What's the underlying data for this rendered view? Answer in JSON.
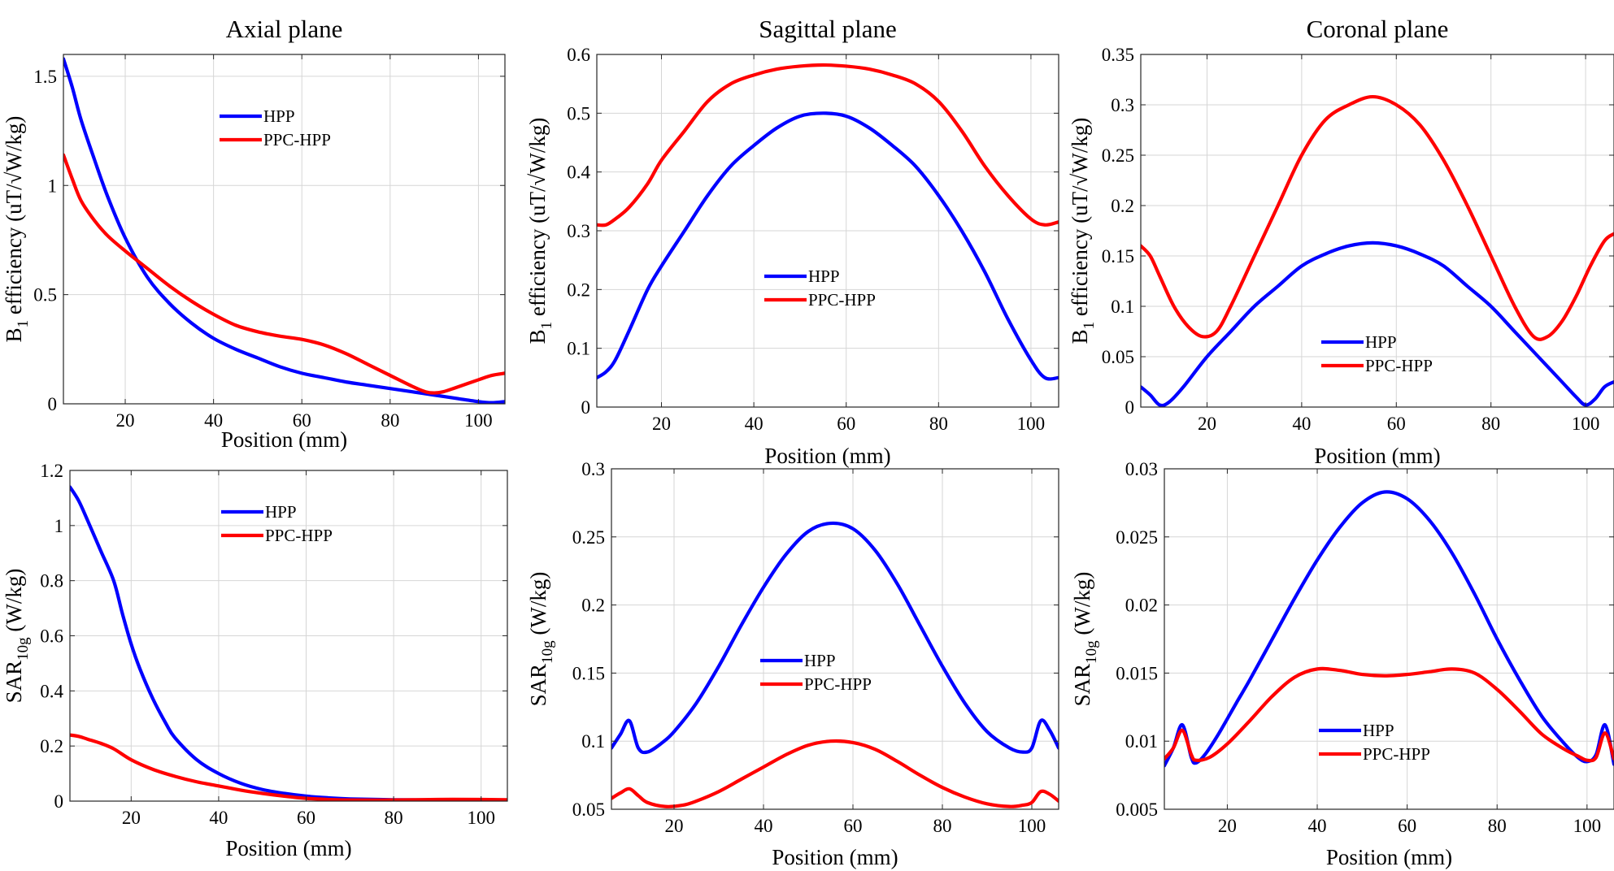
{
  "chart_data": [
    {
      "type": "line",
      "title": "Axial plane",
      "xlabel": "Position (mm)",
      "ylabel": {
        "base": "B",
        "sub": "1",
        "rest": " efficiency (uT/√W/kg)"
      },
      "xlim": [
        6,
        106
      ],
      "ylim": [
        0,
        1.6
      ],
      "xticks": [
        20,
        40,
        60,
        80,
        100
      ],
      "yticks": [
        0,
        0.5,
        1,
        1.5
      ],
      "yticklabels": [
        "0",
        "0.5",
        "1",
        "1.5"
      ],
      "grid": true,
      "legend": "top-center",
      "series": [
        {
          "name": "HPP",
          "color": "#0000ff",
          "x": [
            6,
            8,
            10,
            13,
            16,
            20,
            25,
            30,
            35,
            40,
            45,
            50,
            55,
            60,
            65,
            70,
            75,
            80,
            85,
            90,
            95,
            100,
            103,
            106
          ],
          "y": [
            1.58,
            1.45,
            1.3,
            1.12,
            0.95,
            0.76,
            0.58,
            0.46,
            0.37,
            0.3,
            0.25,
            0.21,
            0.17,
            0.14,
            0.12,
            0.1,
            0.085,
            0.07,
            0.055,
            0.04,
            0.025,
            0.01,
            0.005,
            0.01
          ]
        },
        {
          "name": "PPC-HPP",
          "color": "#ff0000",
          "x": [
            6,
            8,
            10,
            13,
            16,
            20,
            25,
            30,
            35,
            40,
            45,
            50,
            55,
            60,
            65,
            70,
            75,
            80,
            85,
            88,
            90,
            92,
            95,
            100,
            103,
            106
          ],
          "y": [
            1.14,
            1.03,
            0.93,
            0.84,
            0.77,
            0.7,
            0.62,
            0.54,
            0.47,
            0.41,
            0.36,
            0.33,
            0.31,
            0.295,
            0.27,
            0.23,
            0.18,
            0.13,
            0.08,
            0.055,
            0.05,
            0.055,
            0.075,
            0.11,
            0.13,
            0.14
          ]
        }
      ]
    },
    {
      "type": "line",
      "title": "Sagittal plane",
      "xlabel": "Position (mm)",
      "ylabel": {
        "base": "B",
        "sub": "1",
        "rest": " efficiency (uT/√W/kg)"
      },
      "xlim": [
        6,
        106
      ],
      "ylim": [
        0,
        0.6
      ],
      "xticks": [
        20,
        40,
        60,
        80,
        100
      ],
      "yticks": [
        0,
        0.1,
        0.2,
        0.3,
        0.4,
        0.5,
        0.6
      ],
      "yticklabels": [
        "0",
        "0.1",
        "0.2",
        "0.3",
        "0.4",
        "0.5",
        "0.6"
      ],
      "grid": true,
      "legend": "center",
      "series": [
        {
          "name": "HPP",
          "color": "#0000ff",
          "x": [
            6,
            8,
            10,
            13,
            17,
            20,
            25,
            30,
            35,
            40,
            45,
            50,
            55,
            60,
            65,
            70,
            75,
            80,
            85,
            90,
            95,
            100,
            103,
            106
          ],
          "y": [
            0.05,
            0.06,
            0.08,
            0.13,
            0.2,
            0.24,
            0.3,
            0.36,
            0.41,
            0.445,
            0.475,
            0.495,
            0.5,
            0.495,
            0.475,
            0.445,
            0.41,
            0.36,
            0.3,
            0.23,
            0.15,
            0.08,
            0.05,
            0.05
          ]
        },
        {
          "name": "PPC-HPP",
          "color": "#ff0000",
          "x": [
            6,
            8,
            10,
            13,
            17,
            20,
            25,
            30,
            35,
            40,
            45,
            50,
            55,
            60,
            65,
            70,
            75,
            80,
            85,
            90,
            95,
            100,
            103,
            106
          ],
          "y": [
            0.31,
            0.31,
            0.32,
            0.34,
            0.38,
            0.42,
            0.47,
            0.52,
            0.55,
            0.565,
            0.575,
            0.58,
            0.582,
            0.58,
            0.575,
            0.565,
            0.55,
            0.52,
            0.47,
            0.41,
            0.36,
            0.32,
            0.31,
            0.315
          ]
        }
      ]
    },
    {
      "type": "line",
      "title": "Coronal plane",
      "xlabel": "Position (mm)",
      "ylabel": {
        "base": "B",
        "sub": "1",
        "rest": " efficiency (uT/√W/kg)"
      },
      "xlim": [
        6,
        106
      ],
      "ylim": [
        0,
        0.35
      ],
      "xticks": [
        20,
        40,
        60,
        80,
        100
      ],
      "yticks": [
        0,
        0.05,
        0.1,
        0.15,
        0.2,
        0.25,
        0.3,
        0.35
      ],
      "yticklabels": [
        "0",
        "0.05",
        "0.1",
        "0.15",
        "0.2",
        "0.25",
        "0.3",
        "0.35"
      ],
      "grid": true,
      "legend": "bottom-center",
      "series": [
        {
          "name": "HPP",
          "color": "#0000ff",
          "x": [
            6,
            8,
            10,
            12,
            15,
            20,
            25,
            30,
            35,
            40,
            45,
            50,
            55,
            60,
            65,
            70,
            75,
            80,
            85,
            90,
            95,
            98,
            100,
            102,
            104,
            106
          ],
          "y": [
            0.02,
            0.012,
            0.002,
            0.005,
            0.02,
            0.05,
            0.075,
            0.1,
            0.12,
            0.14,
            0.152,
            0.16,
            0.163,
            0.16,
            0.152,
            0.14,
            0.12,
            0.1,
            0.075,
            0.05,
            0.025,
            0.01,
            0.002,
            0.008,
            0.02,
            0.025
          ]
        },
        {
          "name": "PPC-HPP",
          "color": "#ff0000",
          "x": [
            6,
            8,
            10,
            13,
            16,
            19,
            22,
            25,
            30,
            35,
            40,
            45,
            50,
            55,
            60,
            65,
            70,
            75,
            80,
            85,
            89,
            92,
            95,
            98,
            101,
            104,
            106
          ],
          "y": [
            0.16,
            0.15,
            0.13,
            0.1,
            0.08,
            0.07,
            0.075,
            0.1,
            0.15,
            0.2,
            0.25,
            0.285,
            0.3,
            0.308,
            0.3,
            0.28,
            0.245,
            0.2,
            0.15,
            0.1,
            0.07,
            0.07,
            0.085,
            0.11,
            0.14,
            0.165,
            0.172
          ]
        }
      ]
    },
    {
      "type": "line",
      "xlabel": "Position (mm)",
      "ylabel": {
        "base": "SAR",
        "sub": "10g",
        "rest": " (W/kg)"
      },
      "xlim": [
        6,
        106
      ],
      "ylim": [
        0,
        1.2
      ],
      "xticks": [
        20,
        40,
        60,
        80,
        100
      ],
      "yticks": [
        0,
        0.2,
        0.4,
        0.6,
        0.8,
        1,
        1.2
      ],
      "yticklabels": [
        "0",
        "0.2",
        "0.4",
        "0.6",
        "0.8",
        "1",
        "1.2"
      ],
      "grid": true,
      "legend": "top-center",
      "series": [
        {
          "name": "HPP",
          "color": "#0000ff",
          "x": [
            6,
            8,
            10,
            13,
            16,
            18,
            20,
            22,
            25,
            28,
            30,
            35,
            40,
            45,
            50,
            55,
            60,
            65,
            70,
            80,
            90,
            100,
            106
          ],
          "y": [
            1.14,
            1.09,
            1.02,
            0.91,
            0.8,
            0.68,
            0.57,
            0.48,
            0.37,
            0.28,
            0.23,
            0.15,
            0.1,
            0.065,
            0.042,
            0.028,
            0.018,
            0.012,
            0.008,
            0.005,
            0.004,
            0.004,
            0.004
          ]
        },
        {
          "name": "PPC-HPP",
          "color": "#ff0000",
          "x": [
            6,
            8,
            10,
            13,
            16,
            20,
            25,
            30,
            35,
            40,
            45,
            50,
            55,
            60,
            65,
            70,
            80,
            90,
            100,
            106
          ],
          "y": [
            0.24,
            0.235,
            0.225,
            0.21,
            0.19,
            0.15,
            0.115,
            0.09,
            0.07,
            0.055,
            0.04,
            0.028,
            0.018,
            0.01,
            0.006,
            0.004,
            0.004,
            0.006,
            0.006,
            0.005
          ]
        }
      ]
    },
    {
      "type": "line",
      "xlabel": "Position (mm)",
      "ylabel": {
        "base": "SAR",
        "sub": "10g",
        "rest": " (W/kg)"
      },
      "xlim": [
        6,
        106
      ],
      "ylim": [
        0.05,
        0.3
      ],
      "xticks": [
        20,
        40,
        60,
        80,
        100
      ],
      "yticks": [
        0.05,
        0.1,
        0.15,
        0.2,
        0.25,
        0.3
      ],
      "yticklabels": [
        "0.05",
        "0.1",
        "0.15",
        "0.2",
        "0.25",
        "0.3"
      ],
      "grid": true,
      "legend": "center-bottom",
      "series": [
        {
          "name": "HPP",
          "color": "#0000ff",
          "x": [
            6,
            8,
            10,
            12,
            14,
            17,
            20,
            25,
            30,
            35,
            40,
            45,
            50,
            55,
            60,
            65,
            70,
            75,
            80,
            85,
            90,
            95,
            98,
            100,
            102,
            104,
            106
          ],
          "y": [
            0.095,
            0.105,
            0.115,
            0.095,
            0.092,
            0.098,
            0.107,
            0.128,
            0.155,
            0.185,
            0.213,
            0.237,
            0.254,
            0.26,
            0.256,
            0.24,
            0.215,
            0.185,
            0.155,
            0.128,
            0.107,
            0.095,
            0.092,
            0.095,
            0.115,
            0.108,
            0.095
          ]
        },
        {
          "name": "PPC-HPP",
          "color": "#ff0000",
          "x": [
            6,
            8,
            10,
            12,
            14,
            18,
            22,
            25,
            30,
            35,
            40,
            45,
            50,
            55,
            60,
            65,
            70,
            75,
            80,
            85,
            90,
            95,
            98,
            100,
            102,
            104,
            106
          ],
          "y": [
            0.058,
            0.062,
            0.065,
            0.06,
            0.055,
            0.052,
            0.053,
            0.056,
            0.063,
            0.072,
            0.081,
            0.09,
            0.097,
            0.1,
            0.099,
            0.094,
            0.085,
            0.075,
            0.066,
            0.059,
            0.054,
            0.052,
            0.053,
            0.055,
            0.063,
            0.061,
            0.056
          ]
        }
      ]
    },
    {
      "type": "line",
      "xlabel": "Position (mm)",
      "ylabel": {
        "base": "SAR",
        "sub": "10g",
        "rest": " (W/kg)"
      },
      "xlim": [
        6,
        106
      ],
      "ylim": [
        0.005,
        0.03
      ],
      "xticks": [
        20,
        40,
        60,
        80,
        100
      ],
      "yticks": [
        0.005,
        0.01,
        0.015,
        0.02,
        0.025,
        0.03
      ],
      "yticklabels": [
        "0.005",
        "0.01",
        "0.015",
        "0.02",
        "0.025",
        "0.03"
      ],
      "grid": true,
      "legend": "bottom-center",
      "series": [
        {
          "name": "HPP",
          "color": "#0000ff",
          "x": [
            6,
            8,
            10,
            12,
            13,
            15,
            18,
            22,
            25,
            30,
            35,
            40,
            45,
            50,
            55,
            60,
            65,
            70,
            75,
            80,
            85,
            90,
            95,
            98,
            100,
            102,
            104,
            106
          ],
          "y": [
            0.0082,
            0.0095,
            0.0112,
            0.0088,
            0.0084,
            0.009,
            0.0105,
            0.0128,
            0.0145,
            0.0175,
            0.0205,
            0.0233,
            0.0257,
            0.0275,
            0.0283,
            0.0278,
            0.0262,
            0.0238,
            0.0208,
            0.0175,
            0.0145,
            0.0118,
            0.0098,
            0.0088,
            0.0085,
            0.009,
            0.0112,
            0.0083
          ]
        },
        {
          "name": "PPC-HPP",
          "color": "#ff0000",
          "x": [
            6,
            8,
            10,
            12,
            13,
            16,
            20,
            25,
            30,
            35,
            40,
            45,
            50,
            55,
            60,
            65,
            70,
            75,
            80,
            85,
            90,
            95,
            98,
            100,
            102,
            104,
            106
          ],
          "y": [
            0.0087,
            0.0095,
            0.0108,
            0.009,
            0.0086,
            0.0088,
            0.0098,
            0.0115,
            0.0133,
            0.0147,
            0.0153,
            0.0152,
            0.0149,
            0.0148,
            0.0149,
            0.0151,
            0.0153,
            0.015,
            0.0138,
            0.0122,
            0.0105,
            0.0094,
            0.0089,
            0.0086,
            0.0088,
            0.0106,
            0.0087
          ]
        }
      ]
    }
  ]
}
